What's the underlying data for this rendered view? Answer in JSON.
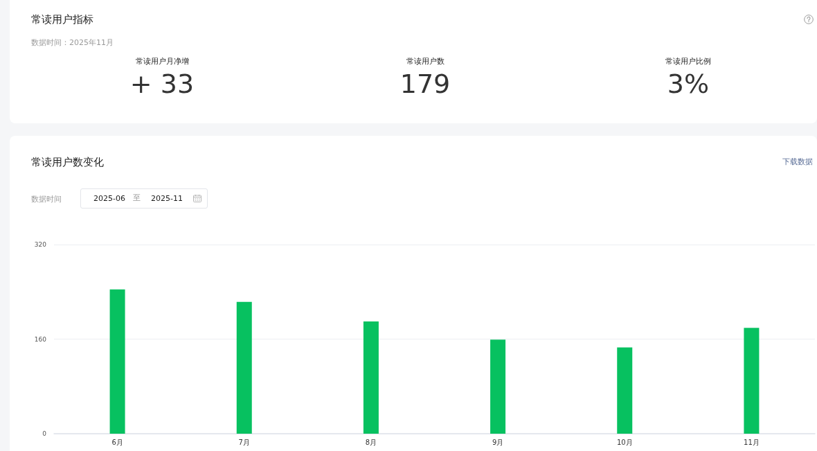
{
  "chart_data": [
    {
      "type": "other",
      "title": "常读用户指标",
      "subtitle": "数据时间：2025年11月",
      "annotations": [
        "常读用户月净增",
        "+ 33",
        "常读用户数",
        "179",
        "常读用户比例",
        "3%"
      ]
    },
    {
      "type": "bar",
      "title": "常读用户数变化",
      "annotations": [
        "数据时间",
        "2025-06",
        "至",
        "2025-11",
        "下载数据"
      ],
      "categories": [
        "6月",
        "7月",
        "8月",
        "9月",
        "10月",
        "11月"
      ],
      "values": [
        244,
        223,
        190,
        159,
        146,
        179
      ],
      "color": "#07c160",
      "ylim": [
        0,
        320
      ],
      "yticks": [
        0,
        160,
        320
      ],
      "grid": "y"
    }
  ]
}
